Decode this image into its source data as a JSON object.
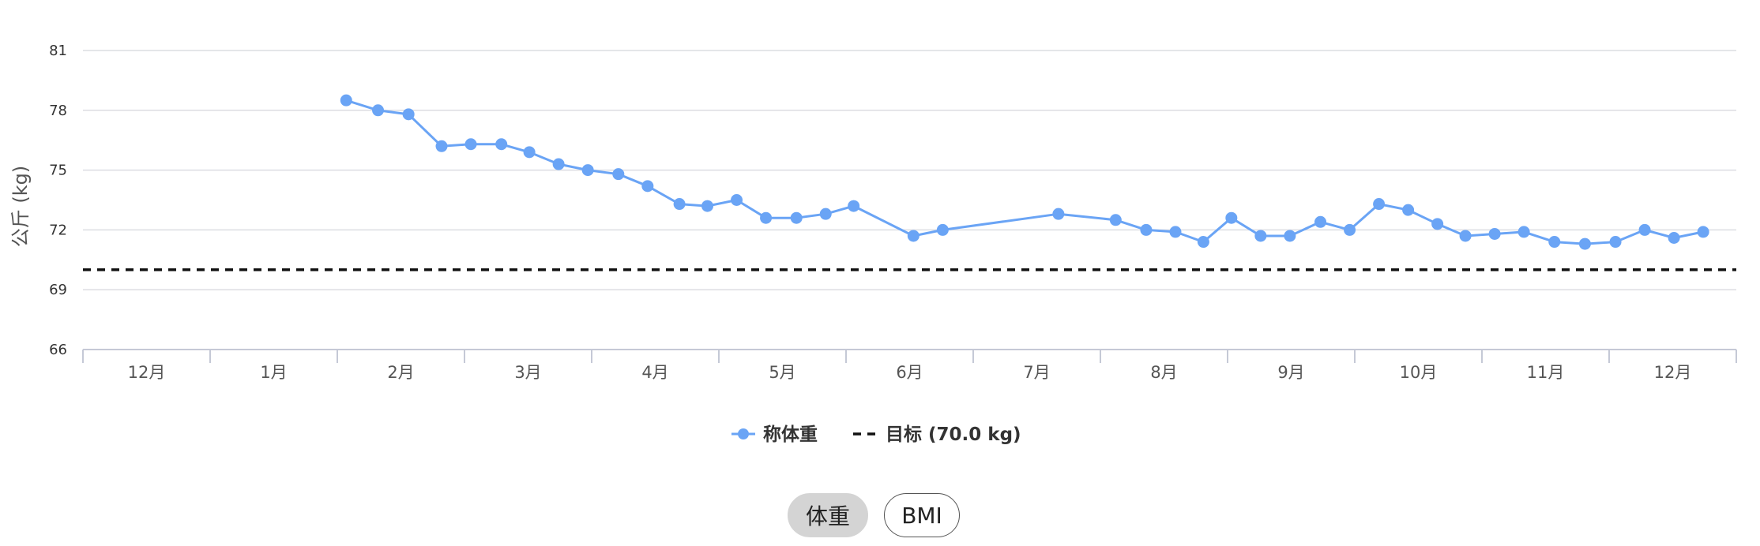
{
  "chart_data": {
    "type": "line",
    "ylabel": "公斤 (kg)",
    "ylim": [
      66,
      81
    ],
    "yticks": [
      81,
      78,
      75,
      72,
      69,
      66
    ],
    "xlim": [
      0,
      13
    ],
    "x_tick_labels": [
      "12月",
      "1月",
      "2月",
      "3月",
      "4月",
      "5月",
      "6月",
      "7月",
      "8月",
      "9月",
      "10月",
      "11月",
      "12月"
    ],
    "grid": true,
    "legend_position": "bottom-center",
    "series": [
      {
        "name": "称体重",
        "color": "#6aa4f5",
        "points": [
          [
            2.07,
            78.5
          ],
          [
            2.32,
            78.0
          ],
          [
            2.56,
            77.8
          ],
          [
            2.82,
            76.2
          ],
          [
            3.05,
            76.3
          ],
          [
            3.29,
            76.3
          ],
          [
            3.51,
            75.9
          ],
          [
            3.74,
            75.3
          ],
          [
            3.97,
            75.0
          ],
          [
            4.21,
            74.8
          ],
          [
            4.44,
            74.2
          ],
          [
            4.69,
            73.3
          ],
          [
            4.91,
            73.2
          ],
          [
            5.14,
            73.5
          ],
          [
            5.37,
            72.6
          ],
          [
            5.61,
            72.6
          ],
          [
            5.84,
            72.8
          ],
          [
            6.06,
            73.2
          ],
          [
            6.53,
            71.7
          ],
          [
            6.76,
            72.0
          ],
          [
            7.67,
            72.8
          ],
          [
            8.12,
            72.5
          ],
          [
            8.36,
            72.0
          ],
          [
            8.59,
            71.9
          ],
          [
            8.81,
            71.4
          ],
          [
            9.03,
            72.6
          ],
          [
            9.26,
            71.7
          ],
          [
            9.49,
            71.7
          ],
          [
            9.73,
            72.4
          ],
          [
            9.96,
            72.0
          ],
          [
            10.19,
            73.3
          ],
          [
            10.42,
            73.0
          ],
          [
            10.65,
            72.3
          ],
          [
            10.87,
            71.7
          ],
          [
            11.1,
            71.8
          ],
          [
            11.33,
            71.9
          ],
          [
            11.57,
            71.4
          ],
          [
            11.81,
            71.3
          ],
          [
            12.05,
            71.4
          ],
          [
            12.28,
            72.0
          ],
          [
            12.51,
            71.6
          ],
          [
            12.74,
            71.9
          ]
        ]
      },
      {
        "name": "目标 (70.0 kg)",
        "style": "dashed",
        "color": "#111111",
        "value": 70.0
      }
    ]
  },
  "legend": {
    "weight": "称体重",
    "target": "目标 (70.0 kg)"
  },
  "toggle": {
    "weight_label": "体重",
    "bmi_label": "BMI",
    "active": "体重"
  },
  "colors": {
    "series": "#6aa4f5",
    "target": "#111111",
    "grid": "#dcdde2",
    "axis": "#c5c9d6",
    "toggle_active_bg": "#d4d4d4"
  }
}
